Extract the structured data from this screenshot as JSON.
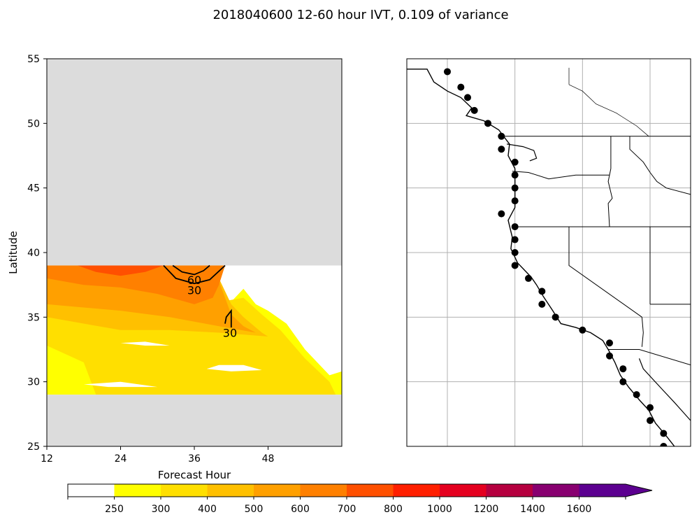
{
  "title": "2018040600 12-60 hour IVT, 0.109 of variance",
  "chart_data": [
    {
      "type": "contour",
      "xlabel": "Forecast Hour",
      "ylabel": "Latitude",
      "xlim": [
        12,
        60
      ],
      "ylim": [
        25,
        55
      ],
      "x_ticks": [
        12,
        24,
        36,
        48
      ],
      "y_ticks": [
        25,
        30,
        35,
        40,
        45,
        50,
        55
      ],
      "no_data_color": "#dcdcdc",
      "no_data_bands": [
        [
          39,
          55
        ],
        [
          25,
          29
        ]
      ],
      "filled_levels": [
        {
          "level": 250,
          "color": "#ffff00",
          "polygon": [
            [
              12,
              36.5
            ],
            [
              18,
              36.8
            ],
            [
              24,
              36.8
            ],
            [
              30,
              36.5
            ],
            [
              36,
              35.8
            ],
            [
              40,
              35.2
            ],
            [
              42,
              36.2
            ],
            [
              44,
              37.2
            ],
            [
              46,
              36
            ],
            [
              48,
              35.5
            ],
            [
              51,
              34.5
            ],
            [
              54,
              32.5
            ],
            [
              58,
              30.5
            ],
            [
              60,
              30.8
            ],
            [
              60,
              29
            ],
            [
              12,
              29
            ]
          ]
        },
        {
          "level": 300,
          "color": "#ffdf00",
          "polygon": [
            [
              12,
              37.2
            ],
            [
              20,
              37.5
            ],
            [
              26,
              37.3
            ],
            [
              32,
              36.8
            ],
            [
              38,
              36
            ],
            [
              44,
              36.5
            ],
            [
              47,
              35.2
            ],
            [
              50,
              34
            ],
            [
              54,
              31.8
            ],
            [
              58,
              30
            ],
            [
              59,
              29
            ],
            [
              20,
              29
            ],
            [
              18,
              31.5
            ],
            [
              12,
              32.8
            ]
          ]
        },
        {
          "level": 400,
          "color": "#ffc000",
          "polygon": [
            [
              12,
              39
            ],
            [
              36,
              39
            ],
            [
              40,
              38
            ],
            [
              42,
              36
            ],
            [
              44,
              35
            ],
            [
              47,
              33.8
            ],
            [
              48,
              33.5
            ],
            [
              40,
              33.8
            ],
            [
              32,
              34
            ],
            [
              24,
              34
            ],
            [
              12,
              35
            ]
          ]
        },
        {
          "level": 500,
          "color": "#ffa000",
          "polygon": [
            [
              12,
              39
            ],
            [
              40,
              39
            ],
            [
              40,
              37.8
            ],
            [
              41,
              36.5
            ],
            [
              42,
              35.2
            ],
            [
              44,
              34.3
            ],
            [
              46,
              33.8
            ],
            [
              40,
              34.3
            ],
            [
              32,
              35
            ],
            [
              24,
              35.5
            ],
            [
              12,
              36
            ]
          ]
        },
        {
          "level": 600,
          "color": "#ff8000",
          "polygon": [
            [
              12,
              39
            ],
            [
              41,
              39
            ],
            [
              40,
              37.5
            ],
            [
              39,
              36.5
            ],
            [
              36,
              36
            ],
            [
              30,
              36.8
            ],
            [
              24,
              37.3
            ],
            [
              18,
              37.5
            ],
            [
              12,
              38
            ]
          ]
        },
        {
          "level": 700,
          "color": "#ff5000",
          "polygon": [
            [
              17,
              39
            ],
            [
              31,
              39
            ],
            [
              28,
              38.5
            ],
            [
              24,
              38.2
            ],
            [
              20,
              38.5
            ]
          ]
        }
      ],
      "white_gaps": [
        [
          [
            24,
            33
          ],
          [
            28,
            32.8
          ],
          [
            32,
            32.8
          ],
          [
            28,
            33.1
          ]
        ],
        [
          [
            38,
            31
          ],
          [
            42,
            30.8
          ],
          [
            47,
            30.9
          ],
          [
            44,
            31.3
          ],
          [
            40,
            31.3
          ]
        ],
        [
          [
            18,
            29.8
          ],
          [
            22,
            29.6
          ],
          [
            30,
            29.6
          ],
          [
            24,
            30
          ]
        ]
      ],
      "contours": [
        {
          "label": "60",
          "label_at": [
            36,
            37.9
          ],
          "path": [
            [
              32.5,
              39
            ],
            [
              34,
              38.5
            ],
            [
              36,
              38.3
            ],
            [
              37.5,
              38.6
            ],
            [
              38.5,
              39
            ]
          ]
        },
        {
          "label": "30",
          "label_at": [
            36,
            37.1
          ],
          "path": [
            [
              31,
              39
            ],
            [
              33,
              38
            ],
            [
              36,
              37.6
            ],
            [
              38.5,
              37.9
            ],
            [
              41,
              39
            ]
          ]
        },
        {
          "label": "30",
          "label_at": [
            41.8,
            33.8
          ],
          "path": [
            [
              41,
              34.5
            ],
            [
              41.2,
              35
            ],
            [
              42,
              35.5
            ],
            [
              42,
              34.2
            ]
          ]
        }
      ],
      "colorbar": {
        "orientation": "horizontal",
        "ticks": [
          "250",
          "300",
          "400",
          "500",
          "600",
          "700",
          "800",
          "1000",
          "1200",
          "1400",
          "1600"
        ],
        "colors": [
          "#ffffff",
          "#ffff00",
          "#ffdf00",
          "#ffc000",
          "#ffa000",
          "#ff8000",
          "#ff5000",
          "#ff1f00",
          "#e4001f",
          "#b5003f",
          "#880070",
          "#5c0090"
        ],
        "extend": "max"
      }
    },
    {
      "type": "map",
      "region": "US West Coast",
      "lon_range": [
        -132,
        -111
      ],
      "lat_range": [
        25,
        55
      ],
      "grid": true,
      "grid_lons": [
        -129,
        -124,
        -119,
        -114
      ],
      "grid_lats": [
        30,
        35,
        40,
        45,
        50
      ],
      "station_marker_color": "#000000",
      "stations": [
        {
          "lon": -129.0,
          "lat": 54.0
        },
        {
          "lon": -128.0,
          "lat": 52.8
        },
        {
          "lon": -127.5,
          "lat": 52.0
        },
        {
          "lon": -127.0,
          "lat": 51.0
        },
        {
          "lon": -126.0,
          "lat": 50.0
        },
        {
          "lon": -125.0,
          "lat": 49.0
        },
        {
          "lon": -125.0,
          "lat": 48.0
        },
        {
          "lon": -124.0,
          "lat": 47.0
        },
        {
          "lon": -124.0,
          "lat": 46.0
        },
        {
          "lon": -124.0,
          "lat": 45.0
        },
        {
          "lon": -124.0,
          "lat": 44.0
        },
        {
          "lon": -125.0,
          "lat": 43.0
        },
        {
          "lon": -124.0,
          "lat": 42.0
        },
        {
          "lon": -124.0,
          "lat": 41.0
        },
        {
          "lon": -124.0,
          "lat": 40.0
        },
        {
          "lon": -124.0,
          "lat": 39.0
        },
        {
          "lon": -123.0,
          "lat": 38.0
        },
        {
          "lon": -122.0,
          "lat": 37.0
        },
        {
          "lon": -122.0,
          "lat": 36.0
        },
        {
          "lon": -121.0,
          "lat": 35.0
        },
        {
          "lon": -119.0,
          "lat": 34.0
        },
        {
          "lon": -117.0,
          "lat": 33.0
        },
        {
          "lon": -117.0,
          "lat": 32.0
        },
        {
          "lon": -116.0,
          "lat": 31.0
        },
        {
          "lon": -116.0,
          "lat": 30.0
        },
        {
          "lon": -115.0,
          "lat": 29.0
        },
        {
          "lon": -114.0,
          "lat": 28.0
        },
        {
          "lon": -114.0,
          "lat": 27.0
        },
        {
          "lon": -113.0,
          "lat": 26.0
        },
        {
          "lon": -113.0,
          "lat": 25.0
        }
      ],
      "coastline": [
        [
          -132,
          54.2
        ],
        [
          -130.5,
          54.2
        ],
        [
          -130,
          53.2
        ],
        [
          -129,
          52.5
        ],
        [
          -128,
          52
        ],
        [
          -127.2,
          51.2
        ],
        [
          -127.6,
          50.6
        ],
        [
          -126.3,
          50.2
        ],
        [
          -125.2,
          49.5
        ],
        [
          -124.4,
          48.4
        ],
        [
          -124.5,
          47.5
        ],
        [
          -124,
          46.5
        ],
        [
          -124,
          45
        ],
        [
          -124,
          43.5
        ],
        [
          -124.5,
          42.5
        ],
        [
          -124.2,
          41.2
        ],
        [
          -124.3,
          40.3
        ],
        [
          -123.8,
          39.2
        ],
        [
          -122.8,
          38.1
        ],
        [
          -122.4,
          37.5
        ],
        [
          -121.9,
          36.6
        ],
        [
          -121.2,
          35.5
        ],
        [
          -120.6,
          34.5
        ],
        [
          -119.5,
          34.2
        ],
        [
          -118.4,
          33.8
        ],
        [
          -117.5,
          33.2
        ],
        [
          -117.1,
          32.5
        ],
        [
          -116.6,
          31.5
        ],
        [
          -116.2,
          30.5
        ],
        [
          -115.6,
          29.6
        ],
        [
          -114.8,
          28.6
        ],
        [
          -114.1,
          27.8
        ],
        [
          -113.6,
          26.8
        ],
        [
          -112.8,
          25.8
        ],
        [
          -112.2,
          25
        ]
      ],
      "gulf_coast": [
        [
          -114.8,
          31.8
        ],
        [
          -114.5,
          31
        ],
        [
          -113.8,
          30.2
        ],
        [
          -113,
          29.3
        ],
        [
          -112.2,
          28.4
        ],
        [
          -111.6,
          27.7
        ],
        [
          -111,
          27
        ]
      ],
      "puget_sound": [
        [
          -124.6,
          48.4
        ],
        [
          -123.4,
          48.2
        ],
        [
          -122.6,
          47.9
        ],
        [
          -122.4,
          47.3
        ],
        [
          -122.9,
          47.1
        ]
      ],
      "borders": [
        [
          [
            -125.2,
            49
          ],
          [
            -111,
            49
          ]
        ],
        [
          [
            -124.2,
            46.3
          ],
          [
            -123,
            46.2
          ],
          [
            -121.5,
            45.7
          ],
          [
            -119.5,
            46
          ],
          [
            -117,
            46
          ],
          [
            -116.9,
            46.5
          ]
        ],
        [
          [
            -117,
            46
          ],
          [
            -117.1,
            45.5
          ],
          [
            -116.8,
            44.2
          ],
          [
            -117.1,
            43.8
          ],
          [
            -117,
            42
          ]
        ],
        [
          [
            -116.9,
            49
          ],
          [
            -116.9,
            46.5
          ]
        ],
        [
          [
            -115.5,
            49
          ],
          [
            -115.5,
            48
          ],
          [
            -114.5,
            47
          ],
          [
            -114,
            46.2
          ],
          [
            -113.5,
            45.5
          ],
          [
            -112.8,
            45
          ],
          [
            -111,
            44.5
          ]
        ],
        [
          [
            -124.2,
            42
          ],
          [
            -111,
            42
          ]
        ],
        [
          [
            -120,
            42
          ],
          [
            -120,
            39
          ],
          [
            -114.6,
            35
          ]
        ],
        [
          [
            -114,
            42
          ],
          [
            -114,
            36
          ]
        ],
        [
          [
            -114,
            36
          ],
          [
            -111,
            36
          ]
        ],
        [
          [
            -114.6,
            35
          ],
          [
            -114.5,
            33.8
          ],
          [
            -114.6,
            32.7
          ]
        ],
        [
          [
            -117.1,
            32.5
          ],
          [
            -114.8,
            32.5
          ],
          [
            -111,
            31.3
          ]
        ]
      ],
      "province_borders": [
        [
          [
            -120,
            54.3
          ],
          [
            -120,
            53
          ]
        ],
        [
          [
            -120,
            53
          ],
          [
            -119,
            52.5
          ],
          [
            -118,
            51.5
          ],
          [
            -116.5,
            50.8
          ],
          [
            -115,
            49.8
          ],
          [
            -114.1,
            49
          ]
        ]
      ]
    }
  ]
}
